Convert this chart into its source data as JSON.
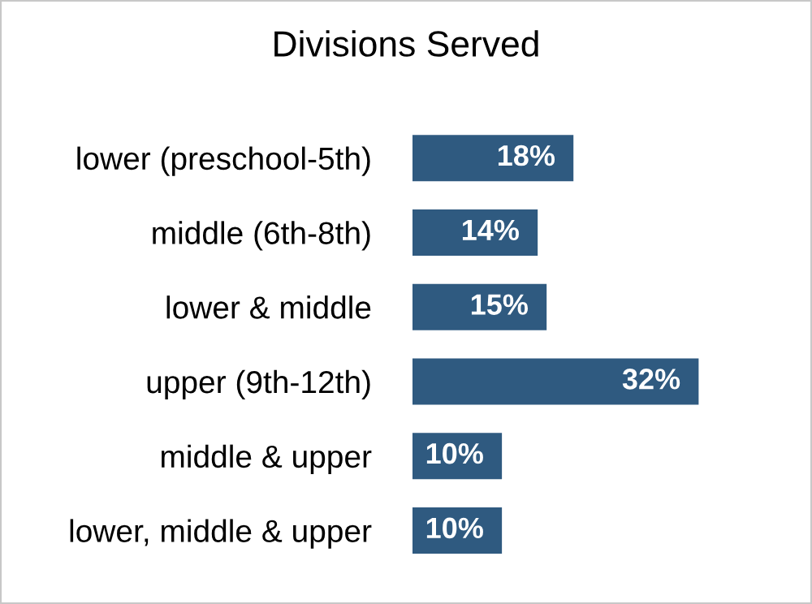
{
  "chart_data": {
    "type": "bar",
    "orientation": "horizontal",
    "title": "Divisions Served",
    "categories": [
      "lower (preschool-5th)",
      "middle (6th-8th)",
      "lower & middle",
      "upper (9th-12th)",
      "middle & upper",
      "lower, middle & upper"
    ],
    "values": [
      18,
      14,
      15,
      32,
      10,
      10
    ],
    "value_labels": [
      "18%",
      "14%",
      "15%",
      "32%",
      "10%",
      "10%"
    ],
    "color": "#2f5a80",
    "tick_labels": "y",
    "grid": false,
    "legend": false
  }
}
